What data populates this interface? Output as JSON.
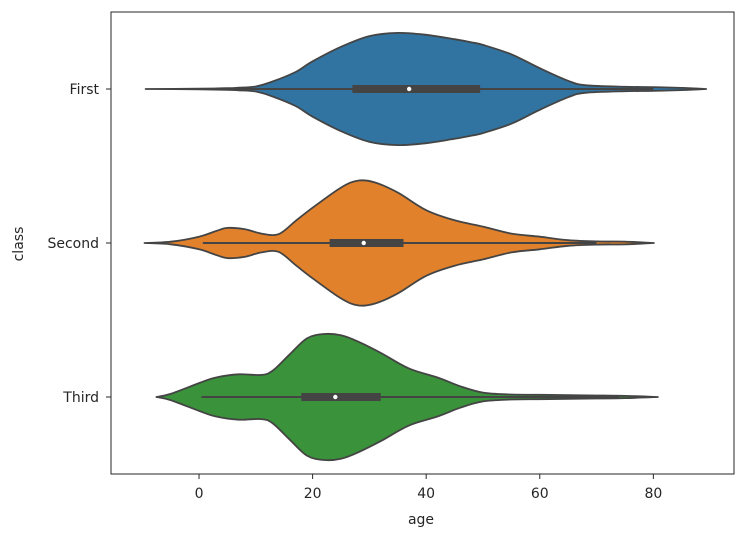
{
  "chart_data": {
    "type": "violin",
    "orientation": "horizontal",
    "xlabel": "age",
    "ylabel": "class",
    "xlim": [
      -15.5,
      94.2
    ],
    "xticks": [
      0,
      20,
      40,
      60,
      80
    ],
    "grid": false,
    "series": [
      {
        "name": "First",
        "color": "#3274a1",
        "min": 0.92,
        "q1": 27,
        "median": 37,
        "q3": 49.5,
        "max": 80,
        "violin_extent": [
          -9.4,
          89.3
        ],
        "profile": [
          [
            -9.4,
            0.0
          ],
          [
            0,
            0.004
          ],
          [
            5,
            0.012
          ],
          [
            7,
            0.02
          ],
          [
            10,
            0.04
          ],
          [
            13,
            0.12
          ],
          [
            17,
            0.27
          ],
          [
            20,
            0.44
          ],
          [
            25,
            0.67
          ],
          [
            30,
            0.84
          ],
          [
            35,
            0.89
          ],
          [
            40,
            0.86
          ],
          [
            45,
            0.79
          ],
          [
            48,
            0.74
          ],
          [
            50,
            0.7
          ],
          [
            55,
            0.55
          ],
          [
            60,
            0.33
          ],
          [
            65,
            0.13
          ],
          [
            68,
            0.06
          ],
          [
            75,
            0.035
          ],
          [
            80,
            0.03
          ],
          [
            85,
            0.018
          ],
          [
            89.3,
            0.0
          ]
        ]
      },
      {
        "name": "Second",
        "color": "#e1812c",
        "min": 0.67,
        "q1": 23,
        "median": 29,
        "q3": 36,
        "max": 70,
        "violin_extent": [
          -9.6,
          80.1
        ],
        "profile": [
          [
            -9.6,
            0.0
          ],
          [
            -5,
            0.02
          ],
          [
            0,
            0.1
          ],
          [
            3,
            0.19
          ],
          [
            5,
            0.24
          ],
          [
            8,
            0.22
          ],
          [
            11,
            0.15
          ],
          [
            14,
            0.14
          ],
          [
            17,
            0.35
          ],
          [
            20,
            0.56
          ],
          [
            25,
            0.88
          ],
          [
            28,
            0.99
          ],
          [
            31,
            0.96
          ],
          [
            35,
            0.8
          ],
          [
            40,
            0.52
          ],
          [
            45,
            0.36
          ],
          [
            50,
            0.26
          ],
          [
            55,
            0.15
          ],
          [
            60,
            0.1
          ],
          [
            65,
            0.045
          ],
          [
            70,
            0.025
          ],
          [
            75,
            0.022
          ],
          [
            80.1,
            0.0
          ]
        ]
      },
      {
        "name": "Third",
        "color": "#3a923a",
        "min": 0.42,
        "q1": 18,
        "median": 24,
        "q3": 32,
        "max": 74,
        "violin_extent": [
          -7.5,
          80.8
        ],
        "profile": [
          [
            -7.5,
            0.0
          ],
          [
            -5,
            0.05
          ],
          [
            0,
            0.22
          ],
          [
            3,
            0.31
          ],
          [
            7,
            0.36
          ],
          [
            11,
            0.35
          ],
          [
            13,
            0.42
          ],
          [
            16,
            0.68
          ],
          [
            19,
            0.93
          ],
          [
            22,
            1.0
          ],
          [
            25,
            0.98
          ],
          [
            28,
            0.88
          ],
          [
            32,
            0.7
          ],
          [
            37,
            0.45
          ],
          [
            42,
            0.31
          ],
          [
            46,
            0.17
          ],
          [
            50,
            0.07
          ],
          [
            55,
            0.04
          ],
          [
            60,
            0.035
          ],
          [
            65,
            0.03
          ],
          [
            70,
            0.024
          ],
          [
            75,
            0.018
          ],
          [
            80.8,
            0.0
          ]
        ]
      }
    ]
  }
}
